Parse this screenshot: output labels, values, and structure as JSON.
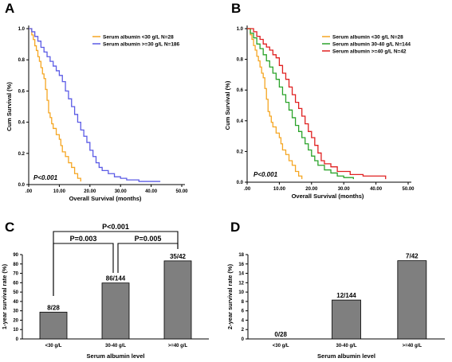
{
  "chart_data": [
    {
      "panel": "A",
      "type": "line",
      "subtype": "kaplan-meier",
      "xlabel": "Overall Survival (months)",
      "ylabel": "Cum Survival (%)",
      "xlim": [
        0,
        50
      ],
      "ylim": [
        0,
        1.0
      ],
      "x_ticks": [
        ".00",
        "10.00",
        "20.00",
        "30.00",
        "40.00",
        "50.00"
      ],
      "y_ticks": [
        "0.0",
        "0.2",
        "0.4",
        "0.6",
        "0.8",
        "1.0"
      ],
      "p_value": "P<0.001",
      "legend_position": "top-right",
      "series": [
        {
          "name": "Serum albumin <30 g/L  N=28",
          "color": "#f5a623",
          "points": [
            [
              0,
              1.0
            ],
            [
              1,
              0.96
            ],
            [
              1.5,
              0.93
            ],
            [
              2,
              0.89
            ],
            [
              2.5,
              0.86
            ],
            [
              3,
              0.82
            ],
            [
              3.5,
              0.79
            ],
            [
              4,
              0.75
            ],
            [
              4.5,
              0.71
            ],
            [
              5,
              0.68
            ],
            [
              5.5,
              0.61
            ],
            [
              6,
              0.54
            ],
            [
              6.5,
              0.46
            ],
            [
              7,
              0.43
            ],
            [
              7.5,
              0.39
            ],
            [
              8,
              0.36
            ],
            [
              9,
              0.32
            ],
            [
              10,
              0.29
            ],
            [
              10.5,
              0.25
            ],
            [
              11,
              0.21
            ],
            [
              12,
              0.18
            ],
            [
              13,
              0.14
            ],
            [
              14,
              0.11
            ],
            [
              15,
              0.07
            ],
            [
              16,
              0.04
            ],
            [
              17,
              0.02
            ]
          ]
        },
        {
          "name": "Serum albumin >=30 g/L  N=186",
          "color": "#5b5be6",
          "points": [
            [
              0,
              1.0
            ],
            [
              1,
              0.98
            ],
            [
              2,
              0.95
            ],
            [
              3,
              0.92
            ],
            [
              4,
              0.88
            ],
            [
              5,
              0.85
            ],
            [
              6,
              0.82
            ],
            [
              7,
              0.79
            ],
            [
              8,
              0.76
            ],
            [
              9,
              0.73
            ],
            [
              10,
              0.7
            ],
            [
              11,
              0.66
            ],
            [
              12,
              0.6
            ],
            [
              13,
              0.55
            ],
            [
              14,
              0.5
            ],
            [
              15,
              0.45
            ],
            [
              16,
              0.4
            ],
            [
              17,
              0.35
            ],
            [
              18,
              0.31
            ],
            [
              19,
              0.27
            ],
            [
              20,
              0.22
            ],
            [
              21,
              0.18
            ],
            [
              22,
              0.14
            ],
            [
              23,
              0.11
            ],
            [
              24,
              0.09
            ],
            [
              26,
              0.07
            ],
            [
              28,
              0.05
            ],
            [
              30,
              0.04
            ],
            [
              32,
              0.03
            ],
            [
              36,
              0.02
            ],
            [
              43,
              0.02
            ]
          ]
        }
      ]
    },
    {
      "panel": "B",
      "type": "line",
      "subtype": "kaplan-meier",
      "xlabel": "Overall Survival (months)",
      "ylabel": "Cum Survival (%)",
      "xlim": [
        0,
        50
      ],
      "ylim": [
        0,
        1.0
      ],
      "x_ticks": [
        ".00",
        "10.00",
        "20.00",
        "30.00",
        "40.00",
        "50.00"
      ],
      "y_ticks": [
        "0.0",
        "0.2",
        "0.4",
        "0.6",
        "0.8",
        "1.0"
      ],
      "p_value": "P<0.001",
      "legend_position": "top-right",
      "series": [
        {
          "name": "Serum albumin <30 g/L  N=28",
          "color": "#f5a623",
          "points": [
            [
              0,
              1.0
            ],
            [
              1,
              0.96
            ],
            [
              1.5,
              0.93
            ],
            [
              2,
              0.89
            ],
            [
              2.5,
              0.86
            ],
            [
              3,
              0.82
            ],
            [
              3.5,
              0.79
            ],
            [
              4,
              0.75
            ],
            [
              4.5,
              0.71
            ],
            [
              5,
              0.68
            ],
            [
              5.5,
              0.61
            ],
            [
              6,
              0.54
            ],
            [
              6.5,
              0.46
            ],
            [
              7,
              0.43
            ],
            [
              7.5,
              0.39
            ],
            [
              8,
              0.36
            ],
            [
              9,
              0.32
            ],
            [
              10,
              0.29
            ],
            [
              10.5,
              0.25
            ],
            [
              11,
              0.21
            ],
            [
              12,
              0.18
            ],
            [
              13,
              0.14
            ],
            [
              14,
              0.11
            ],
            [
              15,
              0.07
            ],
            [
              16,
              0.04
            ],
            [
              17,
              0.02
            ]
          ]
        },
        {
          "name": "Serum albumin 30-40 g/L  N=144",
          "color": "#2aa32a",
          "points": [
            [
              0,
              1.0
            ],
            [
              1,
              0.97
            ],
            [
              2,
              0.94
            ],
            [
              3,
              0.9
            ],
            [
              4,
              0.87
            ],
            [
              5,
              0.83
            ],
            [
              6,
              0.79
            ],
            [
              7,
              0.75
            ],
            [
              8,
              0.71
            ],
            [
              9,
              0.67
            ],
            [
              10,
              0.62
            ],
            [
              11,
              0.57
            ],
            [
              12,
              0.52
            ],
            [
              13,
              0.47
            ],
            [
              14,
              0.42
            ],
            [
              15,
              0.37
            ],
            [
              16,
              0.33
            ],
            [
              17,
              0.29
            ],
            [
              18,
              0.25
            ],
            [
              19,
              0.21
            ],
            [
              20,
              0.17
            ],
            [
              21,
              0.14
            ],
            [
              22,
              0.11
            ],
            [
              24,
              0.08
            ],
            [
              26,
              0.06
            ],
            [
              28,
              0.04
            ],
            [
              30,
              0.03
            ],
            [
              33,
              0.02
            ]
          ]
        },
        {
          "name": "Serum albumin >=40 g/L  N=42",
          "color": "#e02020",
          "points": [
            [
              0,
              1.0
            ],
            [
              2,
              0.98
            ],
            [
              3,
              0.95
            ],
            [
              4,
              0.93
            ],
            [
              5,
              0.9
            ],
            [
              6,
              0.88
            ],
            [
              7,
              0.86
            ],
            [
              8,
              0.83
            ],
            [
              9,
              0.81
            ],
            [
              10,
              0.76
            ],
            [
              11,
              0.71
            ],
            [
              12,
              0.67
            ],
            [
              13,
              0.62
            ],
            [
              14,
              0.57
            ],
            [
              15,
              0.52
            ],
            [
              16,
              0.48
            ],
            [
              17,
              0.43
            ],
            [
              18,
              0.38
            ],
            [
              19,
              0.33
            ],
            [
              20,
              0.29
            ],
            [
              21,
              0.24
            ],
            [
              22,
              0.19
            ],
            [
              23,
              0.14
            ],
            [
              24,
              0.12
            ],
            [
              26,
              0.1
            ],
            [
              28,
              0.07
            ],
            [
              32,
              0.05
            ],
            [
              36,
              0.04
            ],
            [
              43,
              0.02
            ]
          ]
        }
      ]
    },
    {
      "panel": "C",
      "type": "bar",
      "xlabel": "Serum albumin level",
      "ylabel": "1-year survival rate (%)",
      "ylim": [
        0,
        90
      ],
      "y_ticks": [
        "0",
        "10",
        "20",
        "30",
        "40",
        "50",
        "60",
        "70",
        "80",
        "90"
      ],
      "categories": [
        "<30 g/L",
        "30-40 g/L",
        ">=40 g/L"
      ],
      "values": [
        28.6,
        59.7,
        83.3
      ],
      "bar_labels": [
        "8/28",
        "86/144",
        "35/42"
      ],
      "comparisons": [
        {
          "from": 0,
          "to": 2,
          "label": "P<0.001"
        },
        {
          "from": 0,
          "to": 1,
          "label": "P=0.003"
        },
        {
          "from": 1,
          "to": 2,
          "label": "P=0.005"
        }
      ]
    },
    {
      "panel": "D",
      "type": "bar",
      "xlabel": "Serum albumin level",
      "ylabel": "2-year survival rate (%)",
      "ylim": [
        0,
        18
      ],
      "y_ticks": [
        "0",
        "2",
        "4",
        "6",
        "8",
        "10",
        "12",
        "14",
        "16",
        "18"
      ],
      "categories": [
        "<30 g/L",
        "30-40 g/L",
        ">=40 g/L"
      ],
      "values": [
        0,
        8.3,
        16.7
      ],
      "bar_labels": [
        "0/28",
        "12/144",
        "7/42"
      ]
    }
  ]
}
